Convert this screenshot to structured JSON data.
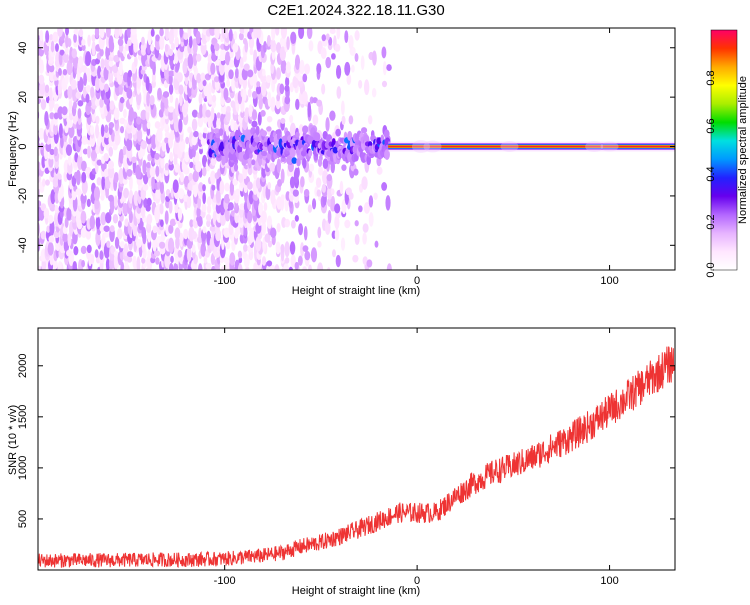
{
  "title": "C2E1.2024.322.18.11.G30",
  "chart_data": [
    {
      "type": "heatmap",
      "xlabel": "Height of straight line (km)",
      "ylabel": "Frequency (Hz)",
      "xlim": [
        -197,
        134
      ],
      "ylim": [
        -50,
        48
      ],
      "xticks": [
        -100,
        0,
        100
      ],
      "xtick_labels": [
        "-100",
        "0",
        "100"
      ],
      "yticks": [
        -40,
        -20,
        0,
        20,
        40
      ],
      "ytick_labels": [
        "-40",
        "-20",
        "0",
        "20",
        "40"
      ],
      "colorbar": {
        "label": "Normalized spectral amplitude",
        "range": [
          0,
          1
        ],
        "ticks": [
          0.0,
          0.2,
          0.4,
          0.6,
          0.8
        ],
        "tick_labels": [
          "0.0",
          "0.2",
          "0.4",
          "0.6",
          "0.8"
        ],
        "colormap": [
          "#ffffff",
          "#ffe6ff",
          "#e6b3ff",
          "#b366ff",
          "#6600ee",
          "#2222ff",
          "#0099ff",
          "#00e0e0",
          "#00dd00",
          "#aaee00",
          "#ffff00",
          "#ffaa00",
          "#ff3300",
          "#ff0066"
        ]
      },
      "regions": [
        {
          "x_range": [
            -197,
            -100
          ],
          "freq_range": [
            -50,
            48
          ],
          "amplitude": 0.1,
          "pattern": "broadband scattered noise"
        },
        {
          "x_range": [
            -100,
            -15
          ],
          "freq_range": [
            -8,
            8
          ],
          "amplitude": 0.25,
          "pattern": "clustered energy near 0 Hz"
        },
        {
          "x_range": [
            -15,
            134
          ],
          "freq_range": [
            -1,
            1
          ],
          "amplitude": 0.95,
          "pattern": "narrow tone at 0 Hz"
        }
      ],
      "grid": false
    },
    {
      "type": "line",
      "xlabel": "Height of straight line (km)",
      "ylabel": "SNR (10 * v/v)",
      "xlim": [
        -197,
        134
      ],
      "ylim": [
        0,
        2370
      ],
      "xticks": [
        -100,
        0,
        100
      ],
      "xtick_labels": [
        "-100",
        "0",
        "100"
      ],
      "yticks": [
        500,
        1000,
        1500,
        2000
      ],
      "ytick_labels": [
        "500",
        "1000",
        "1500",
        "2000"
      ],
      "series": [
        {
          "color": "#ee3333",
          "x": [
            -197,
            -180,
            -160,
            -140,
            -120,
            -100,
            -80,
            -70,
            -60,
            -50,
            -40,
            -30,
            -20,
            -10,
            0,
            10,
            20,
            30,
            40,
            50,
            60,
            70,
            80,
            90,
            100,
            110,
            120,
            130,
            134
          ],
          "y": [
            90,
            95,
            95,
            100,
            100,
            110,
            140,
            170,
            230,
            270,
            330,
            400,
            480,
            560,
            560,
            560,
            720,
            860,
            960,
            1020,
            1100,
            1200,
            1300,
            1420,
            1560,
            1700,
            1850,
            2000,
            2050
          ],
          "noise_band": 130
        }
      ],
      "grid": false
    }
  ]
}
